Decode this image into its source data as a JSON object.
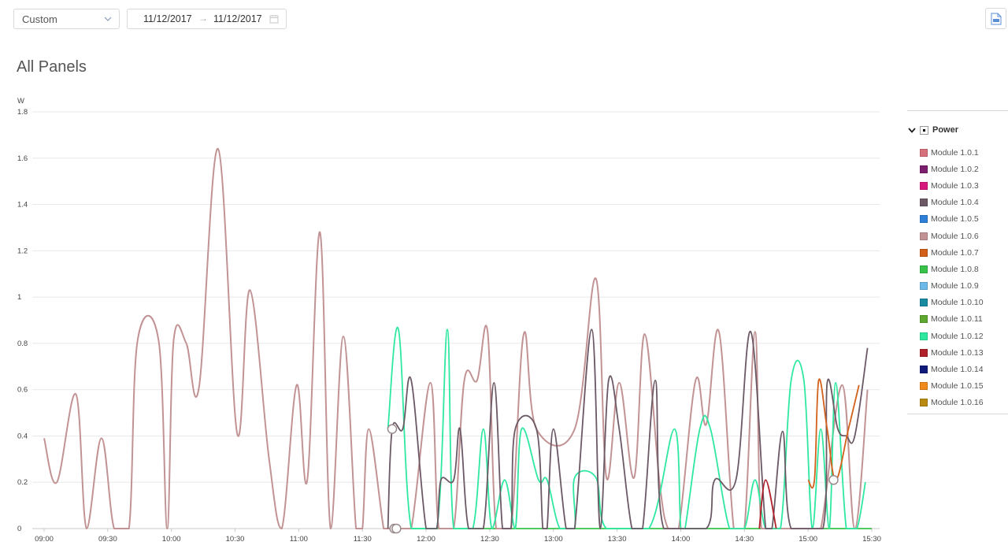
{
  "toolbar": {
    "range_value": "Custom",
    "date_from": "11/12/2017",
    "date_to": "11/12/2017",
    "date_separator": "→"
  },
  "page_title": "All Panels",
  "legend": {
    "group_label": "Power",
    "items": [
      {
        "label": "Module 1.0.1",
        "color": "#d6707b"
      },
      {
        "label": "Module 1.0.2",
        "color": "#7b1f6e"
      },
      {
        "label": "Module 1.0.3",
        "color": "#d6197c"
      },
      {
        "label": "Module 1.0.4",
        "color": "#6b5966"
      },
      {
        "label": "Module 1.0.5",
        "color": "#2f7fd8"
      },
      {
        "label": "Module 1.0.6",
        "color": "#c29394"
      },
      {
        "label": "Module 1.0.7",
        "color": "#d2601a"
      },
      {
        "label": "Module 1.0.8",
        "color": "#38c24a"
      },
      {
        "label": "Module 1.0.9",
        "color": "#6cb8e6"
      },
      {
        "label": "Module 1.0.10",
        "color": "#1a8aa0"
      },
      {
        "label": "Module 1.0.11",
        "color": "#5ea82f"
      },
      {
        "label": "Module 1.0.12",
        "color": "#2ee8a0"
      },
      {
        "label": "Module 1.0.13",
        "color": "#b0202a"
      },
      {
        "label": "Module 1.0.14",
        "color": "#0f1a7a"
      },
      {
        "label": "Module 1.0.15",
        "color": "#f08a1a"
      },
      {
        "label": "Module 1.0.16",
        "color": "#b88a10"
      }
    ]
  },
  "chart_data": {
    "type": "line",
    "ylabel": "W",
    "xlabel": "",
    "ylim": [
      0,
      1.8
    ],
    "yticks": [
      0,
      0.2,
      0.4,
      0.6,
      0.8,
      1,
      1.2,
      1.4,
      1.6,
      1.8
    ],
    "ytick_labels": [
      "0",
      "0.2",
      "0.4",
      "0.6",
      "0.8",
      "1",
      "1.2",
      "1.4",
      "1.6",
      "1.8"
    ],
    "xlim": [
      "09:00",
      "15:30"
    ],
    "xtick_labels": [
      "09:00",
      "09:30",
      "10:00",
      "10:30",
      "11:00",
      "11:30",
      "12:00",
      "12:30",
      "13:00",
      "13:30",
      "14:00",
      "14:30",
      "15:00",
      "15:30"
    ],
    "grid": true,
    "legend_position": "right",
    "series": [
      {
        "name": "Module 1.0.6",
        "color": "#c29394",
        "points": [
          [
            "09:00",
            0.39
          ],
          [
            "09:06",
            0.2
          ],
          [
            "09:15",
            0.58
          ],
          [
            "09:20",
            0.0
          ],
          [
            "09:27",
            0.39
          ],
          [
            "09:33",
            0.0
          ],
          [
            "09:40",
            0.0
          ],
          [
            "09:44",
            0.81
          ],
          [
            "09:54",
            0.81
          ],
          [
            "09:58",
            0.0
          ],
          [
            "10:01",
            0.81
          ],
          [
            "10:07",
            0.8
          ],
          [
            "10:13",
            0.61
          ],
          [
            "10:22",
            1.64
          ],
          [
            "10:31",
            0.41
          ],
          [
            "10:37",
            1.03
          ],
          [
            "10:46",
            0.3
          ],
          [
            "10:52",
            0.0
          ],
          [
            "10:59",
            0.62
          ],
          [
            "11:04",
            0.21
          ],
          [
            "11:10",
            1.28
          ],
          [
            "11:15",
            0.0
          ],
          [
            "11:21",
            0.83
          ],
          [
            "11:27",
            0.0
          ],
          [
            "11:30",
            0.0
          ],
          [
            "11:33",
            0.43
          ],
          [
            "11:40",
            0.0
          ],
          [
            "11:42",
            0.0
          ],
          [
            "11:47",
            0.0
          ],
          [
            "11:53",
            0.0
          ],
          [
            "12:02",
            0.63
          ],
          [
            "12:06",
            0.0
          ],
          [
            "12:13",
            0.0
          ],
          [
            "12:18",
            0.64
          ],
          [
            "12:24",
            0.64
          ],
          [
            "12:29",
            0.85
          ],
          [
            "12:33",
            0.0
          ],
          [
            "12:40",
            0.0
          ],
          [
            "12:46",
            0.84
          ],
          [
            "12:52",
            0.43
          ],
          [
            "13:10",
            0.43
          ],
          [
            "13:20",
            1.08
          ],
          [
            "13:25",
            0.22
          ],
          [
            "13:31",
            0.63
          ],
          [
            "13:38",
            0.22
          ],
          [
            "13:43",
            0.84
          ],
          [
            "13:50",
            0.2
          ],
          [
            "13:54",
            0.0
          ],
          [
            "13:59",
            0.0
          ],
          [
            "14:07",
            0.64
          ],
          [
            "14:12",
            0.45
          ],
          [
            "14:18",
            0.85
          ],
          [
            "14:25",
            0.0
          ],
          [
            "14:30",
            0.0
          ],
          [
            "14:35",
            0.85
          ],
          [
            "14:38",
            0.0
          ],
          [
            "14:45",
            0.0
          ],
          [
            "14:52",
            0.0
          ],
          [
            "15:00",
            0.0
          ],
          [
            "15:06",
            0.0
          ],
          [
            "15:16",
            0.62
          ],
          [
            "15:22",
            0.0
          ],
          [
            "15:28",
            0.6
          ]
        ]
      },
      {
        "name": "Module 1.0.12",
        "color": "#2ee8a0",
        "points": [
          [
            "11:42",
            0.43
          ],
          [
            "11:47",
            0.86
          ],
          [
            "11:53",
            0.0
          ],
          [
            "12:05",
            0.0
          ],
          [
            "12:10",
            0.86
          ],
          [
            "12:13",
            0.0
          ],
          [
            "12:22",
            0.0
          ],
          [
            "12:27",
            0.43
          ],
          [
            "12:31",
            0.0
          ],
          [
            "12:37",
            0.21
          ],
          [
            "12:42",
            0.0
          ],
          [
            "12:45",
            0.43
          ],
          [
            "12:53",
            0.21
          ],
          [
            "12:57",
            0.21
          ],
          [
            "13:03",
            0.0
          ],
          [
            "13:10",
            0.0
          ],
          [
            "13:10",
            0.22
          ],
          [
            "13:20",
            0.22
          ],
          [
            "13:25",
            0.0
          ],
          [
            "13:45",
            0.0
          ],
          [
            "13:57",
            0.43
          ],
          [
            "14:00",
            0.0
          ],
          [
            "14:02",
            0.0
          ],
          [
            "14:09",
            0.43
          ],
          [
            "14:14",
            0.43
          ],
          [
            "14:23",
            0.0
          ],
          [
            "14:30",
            0.0
          ],
          [
            "14:35",
            0.21
          ],
          [
            "14:40",
            0.0
          ],
          [
            "14:47",
            0.0
          ],
          [
            "14:52",
            0.64
          ],
          [
            "14:58",
            0.64
          ],
          [
            "15:02",
            0.0
          ],
          [
            "15:06",
            0.43
          ],
          [
            "15:10",
            0.0
          ],
          [
            "15:13",
            0.63
          ],
          [
            "15:18",
            0.0
          ],
          [
            "15:23",
            0.0
          ],
          [
            "15:27",
            0.2
          ]
        ]
      },
      {
        "name": "Module 1.0.4",
        "color": "#6b5966",
        "points": [
          [
            "11:42",
            0.0
          ],
          [
            "11:44",
            0.43
          ],
          [
            "11:49",
            0.43
          ],
          [
            "11:53",
            0.64
          ],
          [
            "12:00",
            0.0
          ],
          [
            "12:05",
            0.0
          ],
          [
            "12:07",
            0.21
          ],
          [
            "12:13",
            0.21
          ],
          [
            "12:16",
            0.43
          ],
          [
            "12:20",
            0.0
          ],
          [
            "12:27",
            0.0
          ],
          [
            "12:32",
            0.63
          ],
          [
            "12:36",
            0.0
          ],
          [
            "12:40",
            0.0
          ],
          [
            "12:42",
            0.43
          ],
          [
            "12:52",
            0.43
          ],
          [
            "12:55",
            0.0
          ],
          [
            "12:57",
            0.0
          ],
          [
            "13:00",
            0.43
          ],
          [
            "13:06",
            0.0
          ],
          [
            "13:10",
            0.0
          ],
          [
            "13:18",
            0.86
          ],
          [
            "13:22",
            0.0
          ],
          [
            "13:26",
            0.64
          ],
          [
            "13:31",
            0.43
          ],
          [
            "13:37",
            0.0
          ],
          [
            "13:42",
            0.0
          ],
          [
            "13:48",
            0.64
          ],
          [
            "13:52",
            0.0
          ],
          [
            "14:12",
            0.0
          ],
          [
            "14:16",
            0.21
          ],
          [
            "14:26",
            0.21
          ],
          [
            "14:33",
            0.85
          ],
          [
            "14:40",
            0.0
          ],
          [
            "14:43",
            0.0
          ],
          [
            "14:48",
            0.42
          ],
          [
            "14:52",
            0.0
          ],
          [
            "15:07",
            0.0
          ],
          [
            "15:09",
            0.63
          ],
          [
            "15:14",
            0.43
          ],
          [
            "15:18",
            0.4
          ],
          [
            "15:22",
            0.4
          ],
          [
            "15:28",
            0.78
          ]
        ]
      },
      {
        "name": "Module 1.0.13",
        "color": "#b0202a",
        "points": [
          [
            "14:37",
            0.0
          ],
          [
            "14:40",
            0.21
          ],
          [
            "14:45",
            0.0
          ]
        ]
      },
      {
        "name": "Module 1.0.7",
        "color": "#d2601a",
        "points": [
          [
            "15:00",
            0.21
          ],
          [
            "15:03",
            0.21
          ],
          [
            "15:05",
            0.64
          ],
          [
            "15:09",
            0.43
          ],
          [
            "15:13",
            0.21
          ],
          [
            "15:19",
            0.43
          ],
          [
            "15:24",
            0.62
          ]
        ]
      },
      {
        "name": "Module 1.0.8",
        "color": "#38c24a",
        "points": [
          [
            "11:42",
            0.0
          ],
          [
            "15:30",
            0.0
          ]
        ]
      }
    ],
    "markers": [
      {
        "time": "11:44",
        "value": 0.43
      },
      {
        "time": "11:45",
        "value": 0.0
      },
      {
        "time": "11:46",
        "value": 0.0
      },
      {
        "time": "15:12",
        "value": 0.21
      }
    ]
  }
}
